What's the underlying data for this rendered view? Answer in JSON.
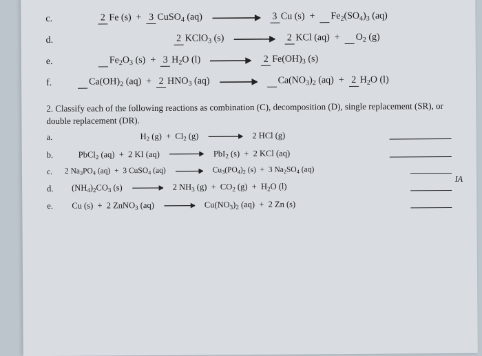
{
  "q1": {
    "c": {
      "label": "c.",
      "lhs": "<span class='blank filled'>2</span>Fe (s) &nbsp;+&nbsp; <span class='blank filled'>3</span>CuSO<sub>4</sub> (aq)",
      "rhs": "<span class='blank filled'>3</span>Cu (s) &nbsp;+&nbsp; <span class='blank'>&nbsp;</span>Fe<sub>2</sub>(SO<sub>4</sub>)<sub>3</sub> (aq)"
    },
    "d": {
      "label": "d.",
      "lhs": "<span class='blank filled'>2</span>KClO<sub>3</sub> (s)",
      "rhs": "<span class='blank filled'>2</span>KCl (aq) &nbsp;+&nbsp; <span class='blank'>&nbsp;</span>O<sub>2</sub> (g)"
    },
    "e": {
      "label": "e.",
      "lhs": "<span class='blank'>&nbsp;</span>Fe<sub>2</sub>O<sub>3</sub> (s) &nbsp;+&nbsp; <span class='blank filled'>3</span>H<sub>2</sub>O (l)",
      "rhs": "<span class='blank filled'>2</span>Fe(OH)<sub>3</sub> (s)"
    },
    "f": {
      "label": "f.",
      "lhs": "<span class='blank'>&nbsp;</span>Ca(OH)<sub>2</sub> (aq) &nbsp;+&nbsp; <span class='blank filled'>2</span>HNO<sub>3</sub> (aq)",
      "rhs": "<span class='blank'>&nbsp;</span>Ca(NO<sub>3</sub>)<sub>2</sub> (aq) &nbsp;+&nbsp; <span class='blank filled'>2</span>H<sub>2</sub>O (l)"
    }
  },
  "q2text": "2. Classify each of the following reactions as combination (C), decomposition (D), single replacement (SR), or double replacement (DR).",
  "ia": "IA",
  "q2": {
    "a": {
      "label": "a.",
      "lhs": "H<sub>2</sub> (g) &nbsp;+&nbsp; Cl<sub>2</sub> (g)",
      "rhs": "2 HCl (g)"
    },
    "b": {
      "label": "b.",
      "lhs": "PbCl<sub>2</sub> (aq) &nbsp;+&nbsp; 2 KI (aq)",
      "rhs": "PbI<sub>2</sub> (s) &nbsp;+&nbsp; 2 KCl (aq)"
    },
    "c": {
      "label": "c.",
      "lhs": "2 Na<sub>3</sub>PO<sub>4</sub> (aq) &nbsp;+&nbsp; 3 CuSO<sub>4</sub> (aq)",
      "rhs": "Cu<sub>3</sub>(PO<sub>4</sub>)<sub>2</sub> (s) &nbsp;+&nbsp; 3 Na<sub>2</sub>SO<sub>4</sub> (aq)"
    },
    "d": {
      "label": "d.",
      "lhs": "(NH<sub>4</sub>)<sub>2</sub>CO<sub>3</sub> (s)",
      "rhs": "2 NH<sub>3</sub> (g) &nbsp;+&nbsp; CO<sub>2</sub> (g) &nbsp;+&nbsp; H<sub>2</sub>O (l)"
    },
    "e": {
      "label": "e.",
      "lhs": "Cu (s) &nbsp;+&nbsp; 2 ZnNO<sub>3</sub> (aq)",
      "rhs": "Cu(NO<sub>3</sub>)<sub>2</sub> (aq) &nbsp;+&nbsp; 2 Zn (s)"
    }
  },
  "arrow": {
    "long_w": 70,
    "short_w": 50
  }
}
